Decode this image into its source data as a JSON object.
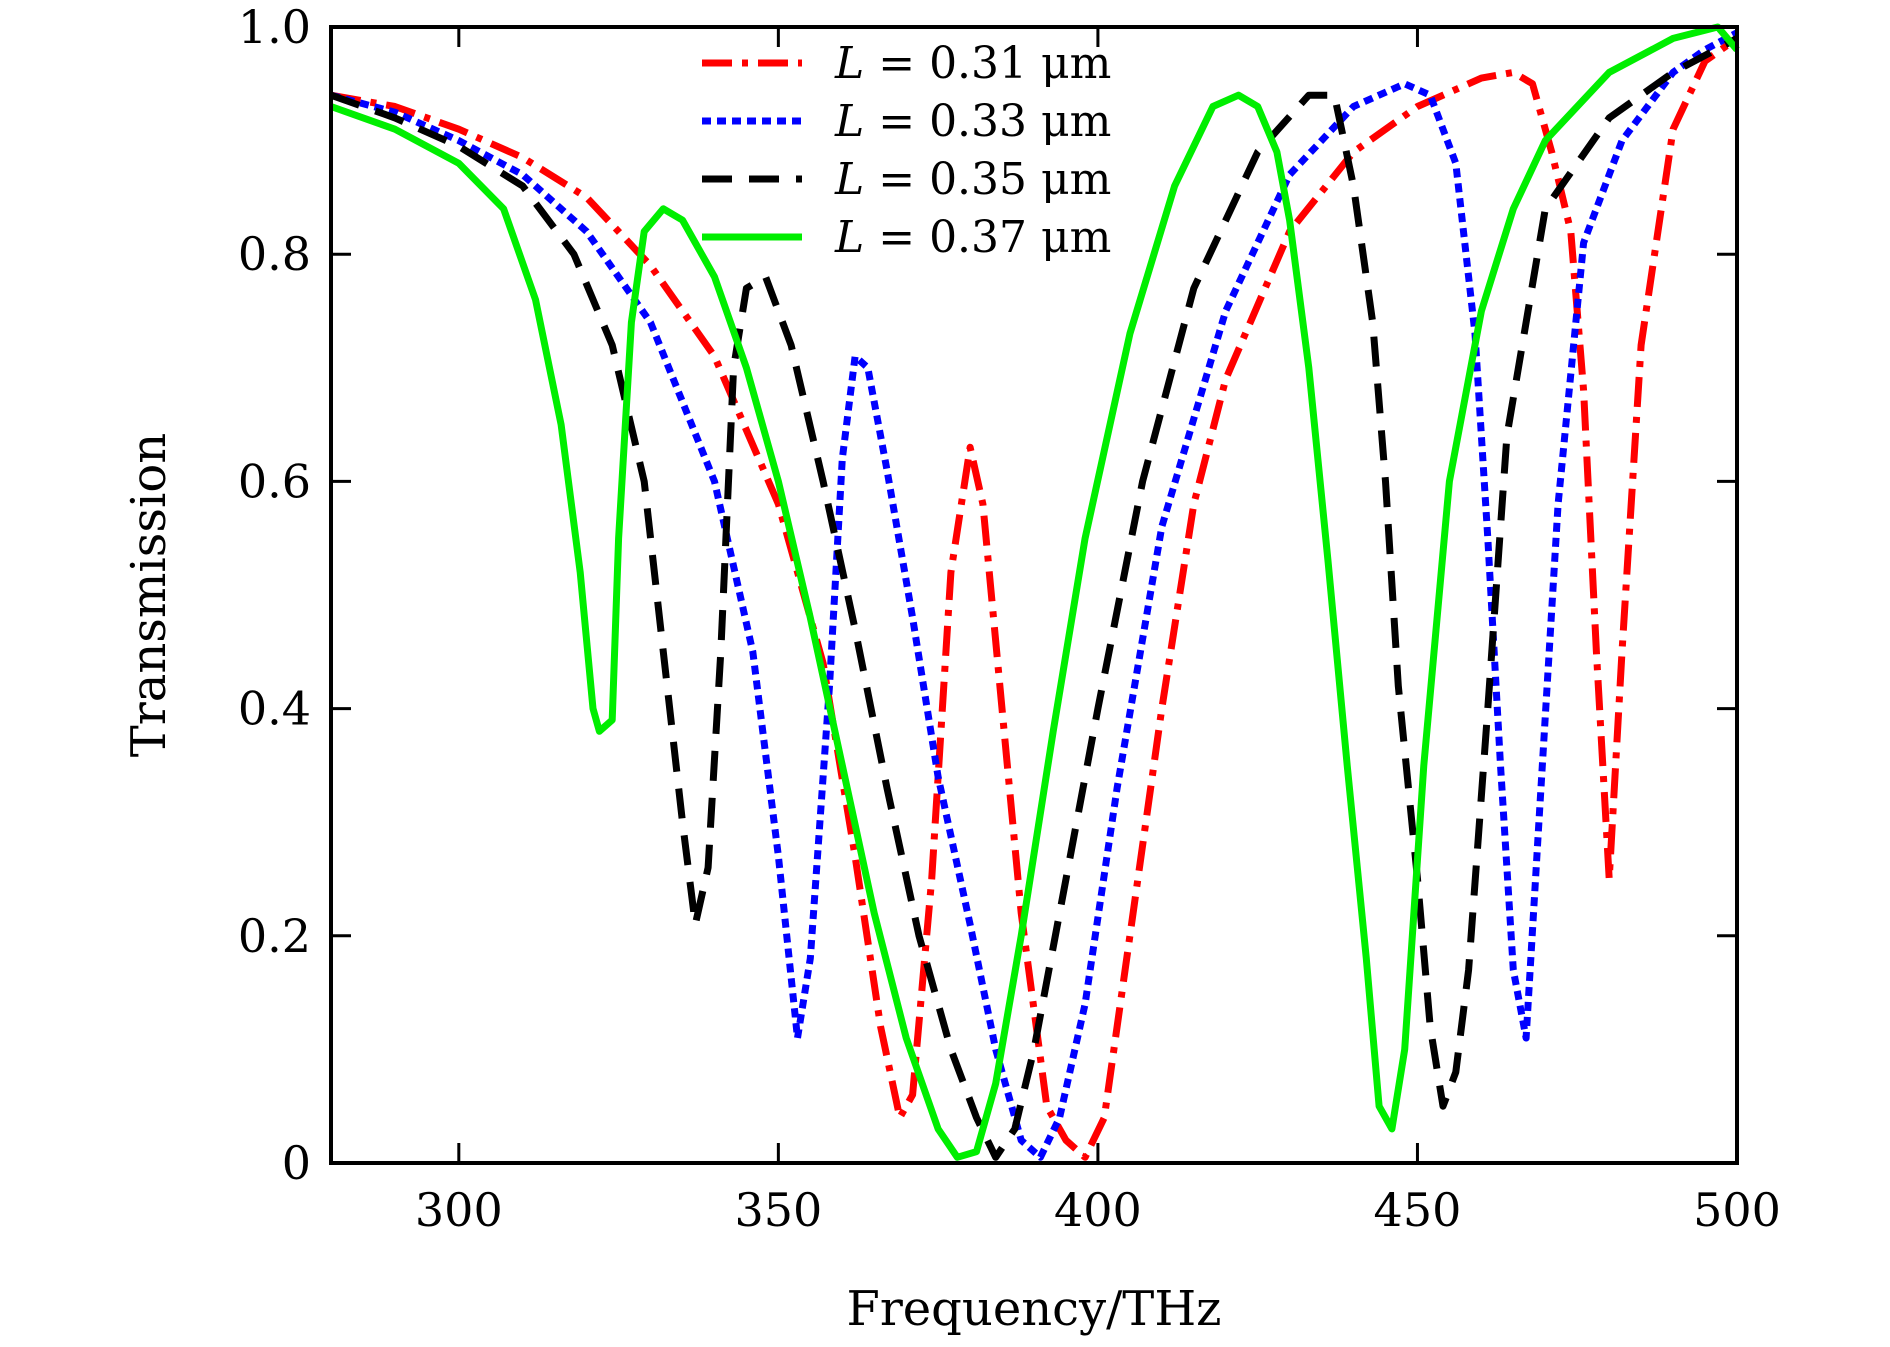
{
  "chart_data": {
    "type": "line",
    "xlabel": "Frequency/THz",
    "ylabel": "Transmission",
    "xlim": [
      280,
      500
    ],
    "ylim": [
      0,
      1.0
    ],
    "xticks": [
      300,
      350,
      400,
      450,
      500
    ],
    "xtick_labels": [
      "300",
      "350",
      "400",
      "450",
      "500"
    ],
    "yticks": [
      0,
      0.2,
      0.4,
      0.6,
      0.8,
      1.0
    ],
    "ytick_labels": [
      "0",
      "0.2",
      "0.4",
      "0.6",
      "0.8",
      "1.0"
    ],
    "grid": false,
    "legend_position": "top-center",
    "series": [
      {
        "name": "L = 0.31 μm",
        "legend_var": "L",
        "legend_value": "0.31 μm",
        "color": "#ff0000",
        "style": "dashdot",
        "points": [
          [
            280,
            0.94
          ],
          [
            290,
            0.93
          ],
          [
            300,
            0.91
          ],
          [
            310,
            0.885
          ],
          [
            320,
            0.85
          ],
          [
            330,
            0.79
          ],
          [
            340,
            0.71
          ],
          [
            350,
            0.58
          ],
          [
            357,
            0.44
          ],
          [
            362,
            0.27
          ],
          [
            366,
            0.12
          ],
          [
            369,
            0.04
          ],
          [
            371,
            0.06
          ],
          [
            374,
            0.25
          ],
          [
            377,
            0.52
          ],
          [
            380,
            0.63
          ],
          [
            382,
            0.58
          ],
          [
            385,
            0.4
          ],
          [
            388,
            0.22
          ],
          [
            392,
            0.05
          ],
          [
            395,
            0.02
          ],
          [
            398,
            0.005
          ],
          [
            401,
            0.04
          ],
          [
            405,
            0.2
          ],
          [
            410,
            0.4
          ],
          [
            415,
            0.58
          ],
          [
            420,
            0.69
          ],
          [
            430,
            0.82
          ],
          [
            440,
            0.89
          ],
          [
            450,
            0.93
          ],
          [
            460,
            0.955
          ],
          [
            465,
            0.96
          ],
          [
            468,
            0.95
          ],
          [
            471,
            0.89
          ],
          [
            474,
            0.82
          ],
          [
            476,
            0.68
          ],
          [
            478,
            0.45
          ],
          [
            480,
            0.25
          ],
          [
            482,
            0.45
          ],
          [
            485,
            0.72
          ],
          [
            490,
            0.91
          ],
          [
            495,
            0.97
          ],
          [
            500,
            0.99
          ]
        ]
      },
      {
        "name": "L = 0.33 μm",
        "legend_var": "L",
        "legend_value": "0.33 μm",
        "color": "#0000ff",
        "style": "dotted",
        "points": [
          [
            280,
            0.94
          ],
          [
            290,
            0.925
          ],
          [
            300,
            0.9
          ],
          [
            310,
            0.87
          ],
          [
            320,
            0.82
          ],
          [
            330,
            0.74
          ],
          [
            340,
            0.6
          ],
          [
            346,
            0.45
          ],
          [
            350,
            0.27
          ],
          [
            353,
            0.11
          ],
          [
            355,
            0.18
          ],
          [
            358,
            0.42
          ],
          [
            360,
            0.62
          ],
          [
            362,
            0.71
          ],
          [
            364,
            0.7
          ],
          [
            367,
            0.61
          ],
          [
            371,
            0.48
          ],
          [
            375,
            0.34
          ],
          [
            380,
            0.21
          ],
          [
            384,
            0.1
          ],
          [
            388,
            0.02
          ],
          [
            391,
            0.005
          ],
          [
            394,
            0.04
          ],
          [
            398,
            0.14
          ],
          [
            403,
            0.33
          ],
          [
            410,
            0.56
          ],
          [
            420,
            0.75
          ],
          [
            430,
            0.87
          ],
          [
            440,
            0.93
          ],
          [
            448,
            0.95
          ],
          [
            452,
            0.94
          ],
          [
            456,
            0.88
          ],
          [
            459,
            0.73
          ],
          [
            461,
            0.55
          ],
          [
            463,
            0.35
          ],
          [
            465,
            0.17
          ],
          [
            467,
            0.11
          ],
          [
            469,
            0.3
          ],
          [
            472,
            0.58
          ],
          [
            476,
            0.81
          ],
          [
            482,
            0.9
          ],
          [
            490,
            0.96
          ],
          [
            495,
            0.98
          ],
          [
            500,
            0.995
          ]
        ]
      },
      {
        "name": "L = 0.35 μm",
        "legend_var": "L",
        "legend_value": "0.35 μm",
        "color": "#000000",
        "style": "dashed",
        "points": [
          [
            280,
            0.94
          ],
          [
            290,
            0.92
          ],
          [
            300,
            0.895
          ],
          [
            310,
            0.86
          ],
          [
            318,
            0.8
          ],
          [
            324,
            0.72
          ],
          [
            329,
            0.6
          ],
          [
            332,
            0.45
          ],
          [
            335,
            0.3
          ],
          [
            337,
            0.21
          ],
          [
            339,
            0.26
          ],
          [
            341,
            0.45
          ],
          [
            343,
            0.7
          ],
          [
            345,
            0.77
          ],
          [
            348,
            0.78
          ],
          [
            352,
            0.72
          ],
          [
            357,
            0.6
          ],
          [
            362,
            0.47
          ],
          [
            367,
            0.33
          ],
          [
            372,
            0.2
          ],
          [
            377,
            0.1
          ],
          [
            381,
            0.04
          ],
          [
            384,
            0.005
          ],
          [
            387,
            0.03
          ],
          [
            390,
            0.1
          ],
          [
            395,
            0.25
          ],
          [
            400,
            0.4
          ],
          [
            407,
            0.6
          ],
          [
            415,
            0.77
          ],
          [
            425,
            0.89
          ],
          [
            433,
            0.94
          ],
          [
            437,
            0.94
          ],
          [
            440,
            0.86
          ],
          [
            443,
            0.74
          ],
          [
            445,
            0.6
          ],
          [
            447,
            0.42
          ],
          [
            450,
            0.25
          ],
          [
            452,
            0.12
          ],
          [
            454,
            0.05
          ],
          [
            456,
            0.08
          ],
          [
            458,
            0.17
          ],
          [
            461,
            0.4
          ],
          [
            464,
            0.64
          ],
          [
            470,
            0.84
          ],
          [
            480,
            0.92
          ],
          [
            490,
            0.96
          ],
          [
            500,
            0.99
          ]
        ]
      },
      {
        "name": "L = 0.37 μm",
        "legend_var": "L",
        "legend_value": "0.37 μm",
        "color": "#00ee00",
        "style": "solid",
        "points": [
          [
            280,
            0.93
          ],
          [
            290,
            0.91
          ],
          [
            300,
            0.88
          ],
          [
            307,
            0.84
          ],
          [
            312,
            0.76
          ],
          [
            316,
            0.65
          ],
          [
            319,
            0.52
          ],
          [
            321,
            0.4
          ],
          [
            322,
            0.38
          ],
          [
            324,
            0.39
          ],
          [
            325,
            0.55
          ],
          [
            327,
            0.74
          ],
          [
            329,
            0.82
          ],
          [
            332,
            0.84
          ],
          [
            335,
            0.83
          ],
          [
            340,
            0.78
          ],
          [
            345,
            0.7
          ],
          [
            350,
            0.6
          ],
          [
            355,
            0.48
          ],
          [
            360,
            0.35
          ],
          [
            365,
            0.22
          ],
          [
            370,
            0.11
          ],
          [
            375,
            0.03
          ],
          [
            378,
            0.005
          ],
          [
            381,
            0.01
          ],
          [
            384,
            0.07
          ],
          [
            388,
            0.2
          ],
          [
            393,
            0.38
          ],
          [
            398,
            0.55
          ],
          [
            405,
            0.73
          ],
          [
            412,
            0.86
          ],
          [
            418,
            0.93
          ],
          [
            422,
            0.94
          ],
          [
            425,
            0.93
          ],
          [
            428,
            0.89
          ],
          [
            430,
            0.83
          ],
          [
            433,
            0.7
          ],
          [
            436,
            0.53
          ],
          [
            439,
            0.35
          ],
          [
            442,
            0.18
          ],
          [
            444,
            0.05
          ],
          [
            446,
            0.03
          ],
          [
            448,
            0.1
          ],
          [
            451,
            0.35
          ],
          [
            455,
            0.6
          ],
          [
            460,
            0.75
          ],
          [
            465,
            0.84
          ],
          [
            470,
            0.9
          ],
          [
            480,
            0.96
          ],
          [
            490,
            0.99
          ],
          [
            497,
            1.0
          ],
          [
            500,
            0.98
          ]
        ]
      }
    ]
  }
}
